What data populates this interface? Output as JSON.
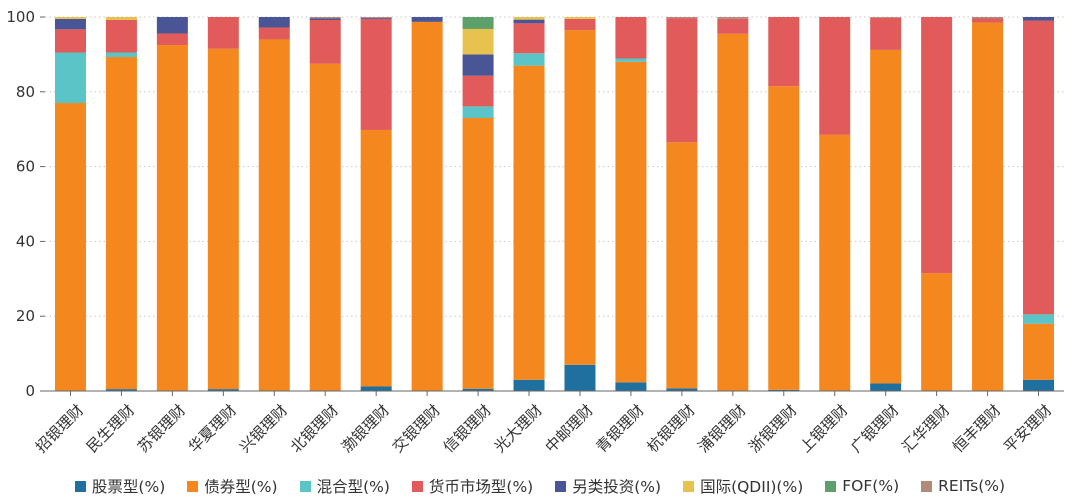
{
  "chart_data": {
    "type": "bar",
    "stacked": true,
    "title": "",
    "xlabel": "",
    "ylabel": "",
    "ylim": [
      0,
      100
    ],
    "yticks": [
      0,
      20,
      40,
      60,
      80,
      100
    ],
    "grid": "horizontal-dotted",
    "legend": "bottom",
    "categories": [
      "招银理财",
      "民生理财",
      "苏银理财",
      "华夏理财",
      "兴银理财",
      "北银理财",
      "渤银理财",
      "交银理财",
      "信银理财",
      "光大理财",
      "中邮理财",
      "青银理财",
      "杭银理财",
      "浦银理财",
      "浙银理财",
      "上银理财",
      "广银理财",
      "汇华理财",
      "恒丰理财",
      "平安理财"
    ],
    "series": [
      {
        "name": "股票型(%)",
        "color": "#1f6f9f",
        "values": [
          0,
          0.5,
          0,
          0.5,
          0,
          0,
          1.2,
          0,
          0.6,
          3,
          7,
          2.3,
          0.7,
          0,
          0.3,
          0,
          2,
          0,
          0,
          3
        ]
      },
      {
        "name": "债券型(%)",
        "color": "#f5871f",
        "values": [
          77,
          88.8,
          92.5,
          91,
          94,
          87.5,
          68.6,
          98.7,
          72.4,
          84,
          89.5,
          85.7,
          65.8,
          95.5,
          81.2,
          68.5,
          89.2,
          31.5,
          98.5,
          15
        ]
      },
      {
        "name": "混合型(%)",
        "color": "#5bc4c6",
        "values": [
          13.5,
          1.2,
          0,
          0,
          0,
          0,
          0,
          0,
          3.1,
          3.3,
          0,
          0.9,
          0,
          0,
          0,
          0,
          0,
          0,
          0,
          2.5
        ]
      },
      {
        "name": "货币市场型(%)",
        "color": "#e15b5b",
        "values": [
          6.2,
          8.7,
          3.1,
          8.5,
          3.2,
          11.7,
          29.7,
          0,
          8.2,
          8,
          3,
          11.1,
          33.2,
          4,
          18.5,
          31.5,
          8.6,
          68.5,
          1.1,
          78.5
        ]
      },
      {
        "name": "另类投资(%)",
        "color": "#4a5596",
        "values": [
          2.8,
          0,
          4.4,
          0,
          2.8,
          0.4,
          0.3,
          1.3,
          5.7,
          1,
          0,
          0,
          0,
          0,
          0,
          0,
          0,
          0,
          0,
          1
        ]
      },
      {
        "name": "国际(QDII)(%)",
        "color": "#e7c24f",
        "values": [
          0.5,
          0.8,
          0,
          0,
          0,
          0,
          0,
          0,
          6.8,
          0.7,
          0.5,
          0,
          0,
          0,
          0,
          0,
          0,
          0,
          0,
          0
        ]
      },
      {
        "name": "FOF(%)",
        "color": "#5da06c",
        "values": [
          0,
          0,
          0,
          0,
          0,
          0,
          0,
          0,
          3.2,
          0,
          0,
          0,
          0,
          0,
          0,
          0,
          0,
          0,
          0,
          0
        ]
      },
      {
        "name": "REITs(%)",
        "color": "#b08a7a",
        "values": [
          0,
          0,
          0,
          0,
          0,
          0.4,
          0.2,
          0,
          0,
          0,
          0,
          0,
          0.3,
          0.5,
          0,
          0,
          0.2,
          0,
          0.4,
          0
        ]
      }
    ]
  }
}
